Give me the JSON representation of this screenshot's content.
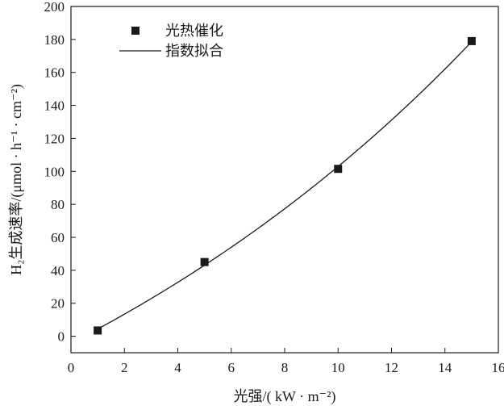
{
  "chart_data": {
    "type": "scatter",
    "xlabel": "光强/( kW · m⁻²)",
    "ylabel": "H₂生成速率/(μmol · h⁻¹ · cm⁻²)",
    "xlim": [
      0,
      16
    ],
    "ylim": [
      -10,
      200
    ],
    "x_ticks": [
      0,
      2,
      4,
      6,
      8,
      10,
      12,
      14,
      16
    ],
    "y_ticks": [
      0,
      20,
      40,
      60,
      80,
      100,
      120,
      140,
      160,
      180,
      200
    ],
    "grid": false,
    "legend_position": "top-left",
    "series": [
      {
        "name": "光热催化",
        "kind": "scatter",
        "marker": "square",
        "color": "#1a1a1a",
        "x": [
          1,
          5,
          10,
          15
        ],
        "y": [
          3.5,
          45,
          101.5,
          179
        ]
      },
      {
        "name": "指数拟合",
        "kind": "line",
        "color": "#1a1a1a",
        "fit": "exponential"
      }
    ]
  }
}
